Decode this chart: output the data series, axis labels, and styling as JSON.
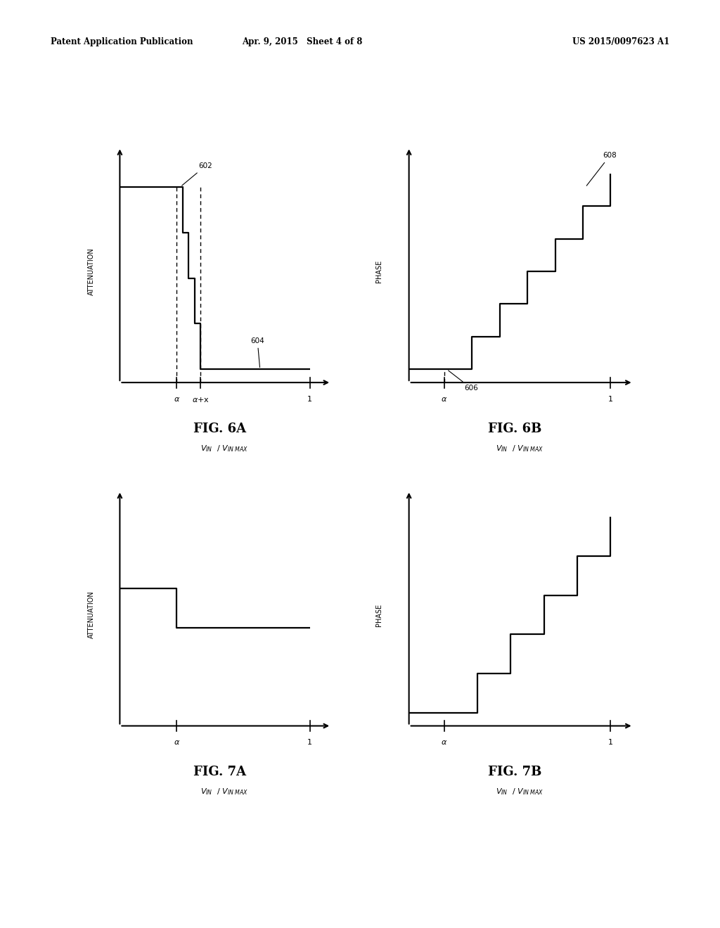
{
  "header_left": "Patent Application Publication",
  "header_mid": "Apr. 9, 2015   Sheet 4 of 8",
  "header_right": "US 2015/0097623 A1",
  "fig6a_label": "FIG. 6A",
  "fig6b_label": "FIG. 6B",
  "fig7a_label": "FIG. 7A",
  "fig7b_label": "FIG. 7B",
  "bg_color": "#ffffff",
  "line_color": "#000000"
}
